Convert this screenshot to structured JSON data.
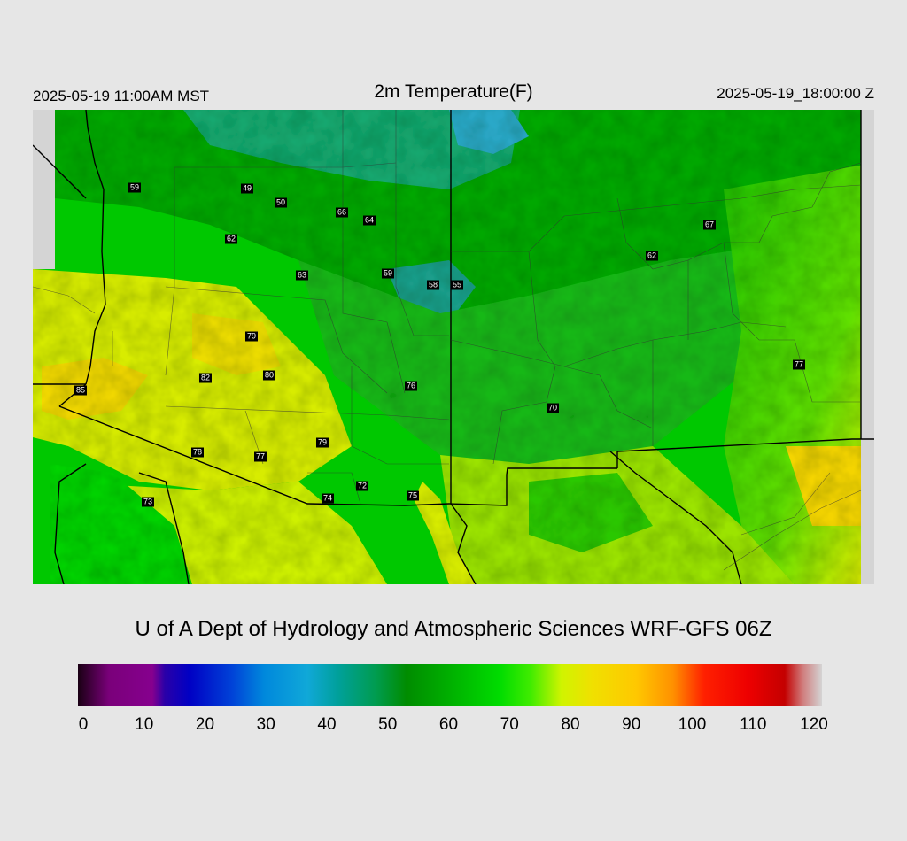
{
  "header": {
    "local_time": "2025-05-19 11:00AM MST",
    "title": "2m Temperature(F)",
    "valid_time": "2025-05-19_18:00:00 Z"
  },
  "credit": "U of A Dept of Hydrology and Atmospheric Sciences WRF-GFS 06Z",
  "colorbar": {
    "min": 0,
    "max": 120,
    "tick_labels": [
      "0",
      "10",
      "20",
      "30",
      "40",
      "50",
      "60",
      "70",
      "80",
      "90",
      "100",
      "110",
      "120"
    ],
    "stops": [
      {
        "v": 0,
        "c": "#1a0014"
      },
      {
        "v": 5,
        "c": "#7a007a"
      },
      {
        "v": 12,
        "c": "#86008e"
      },
      {
        "v": 14,
        "c": "#2a00a8"
      },
      {
        "v": 18,
        "c": "#0000c4"
      },
      {
        "v": 25,
        "c": "#0044d8"
      },
      {
        "v": 30,
        "c": "#0088dc"
      },
      {
        "v": 37,
        "c": "#10a8d8"
      },
      {
        "v": 42,
        "c": "#00a09a"
      },
      {
        "v": 48,
        "c": "#009c50"
      },
      {
        "v": 53,
        "c": "#008c00"
      },
      {
        "v": 60,
        "c": "#00b000"
      },
      {
        "v": 68,
        "c": "#00dc00"
      },
      {
        "v": 73,
        "c": "#40ec00"
      },
      {
        "v": 78,
        "c": "#d0f400"
      },
      {
        "v": 83,
        "c": "#f0e000"
      },
      {
        "v": 90,
        "c": "#ffc800"
      },
      {
        "v": 96,
        "c": "#ff9000"
      },
      {
        "v": 101,
        "c": "#ff2000"
      },
      {
        "v": 108,
        "c": "#ee0000"
      },
      {
        "v": 114,
        "c": "#c40000"
      },
      {
        "v": 117,
        "c": "#d08080"
      },
      {
        "v": 120,
        "c": "#d4d4d4"
      }
    ]
  },
  "stations": [
    {
      "label": "59",
      "value": 59
    },
    {
      "label": "49",
      "value": 49
    },
    {
      "label": "50",
      "value": 50
    },
    {
      "label": "66",
      "value": 66
    },
    {
      "label": "64",
      "value": 64
    },
    {
      "label": "62",
      "value": 62
    },
    {
      "label": "63",
      "value": 63
    },
    {
      "label": "59",
      "value": 59
    },
    {
      "label": "58",
      "value": 58
    },
    {
      "label": "55",
      "value": 55
    },
    {
      "label": "67",
      "value": 67
    },
    {
      "label": "62",
      "value": 62
    },
    {
      "label": "79",
      "value": 79
    },
    {
      "label": "82",
      "value": 82
    },
    {
      "label": "80",
      "value": 80
    },
    {
      "label": "85",
      "value": 85
    },
    {
      "label": "76",
      "value": 76
    },
    {
      "label": "77",
      "value": 77
    },
    {
      "label": "70",
      "value": 70
    },
    {
      "label": "78",
      "value": 78
    },
    {
      "label": "77",
      "value": 77
    },
    {
      "label": "79",
      "value": 79
    },
    {
      "label": "72",
      "value": 72
    },
    {
      "label": "74",
      "value": 74
    },
    {
      "label": "75",
      "value": 75
    },
    {
      "label": "73",
      "value": 73
    }
  ]
}
